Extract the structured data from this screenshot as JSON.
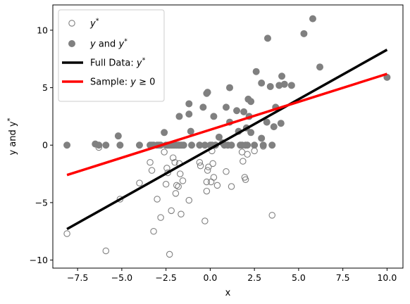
{
  "chart_data": {
    "type": "scatter",
    "xlabel": "x",
    "ylabel": "y and y*",
    "xlim": [
      -8.9,
      10.9
    ],
    "ylim": [
      -10.7,
      12.2
    ],
    "x_ticks": [
      -7.5,
      -5.0,
      -2.5,
      0.0,
      2.5,
      5.0,
      7.5,
      10.0
    ],
    "x_tick_labels": [
      "−7.5",
      "−5.0",
      "−2.5",
      "0.0",
      "2.5",
      "5.0",
      "7.5",
      "10.0"
    ],
    "y_ticks": [
      -10,
      -5,
      0,
      5,
      10
    ],
    "y_tick_labels": [
      "−10",
      "−5",
      "0",
      "5",
      "10"
    ],
    "grid": false,
    "legend_position": "top-left",
    "colors": {
      "scatter": "#808080",
      "full_line": "#000000",
      "sample_line": "#ff0000"
    },
    "legend": [
      {
        "kind": "open-marker",
        "label_main": "y",
        "label_sup": "*",
        "label_rest": ""
      },
      {
        "kind": "filled-marker",
        "label_main": "y",
        "label_rest": " and ",
        "label_main2": "y",
        "label_sup": "*"
      },
      {
        "kind": "black-line",
        "label_pre": "Full Data: ",
        "label_main": "y",
        "label_sup": "*"
      },
      {
        "kind": "red-line",
        "label_pre": "Sample: ",
        "label_main": "y",
        "label_rest": " ≥ 0"
      }
    ],
    "series": [
      {
        "name": "y*",
        "marker": "open-circle",
        "points": [
          [
            -8.1,
            -7.7
          ],
          [
            -6.3,
            -0.2
          ],
          [
            -5.9,
            -9.2
          ],
          [
            -5.1,
            -4.7
          ],
          [
            -4.0,
            -3.3
          ],
          [
            -3.4,
            -1.5
          ],
          [
            -3.3,
            -2.2
          ],
          [
            -3.2,
            -7.5
          ],
          [
            -3.0,
            -4.7
          ],
          [
            -2.8,
            -6.3
          ],
          [
            -2.6,
            -0.6
          ],
          [
            -2.5,
            -3.4
          ],
          [
            -2.45,
            -2.0
          ],
          [
            -2.4,
            -2.4
          ],
          [
            -2.3,
            -9.5
          ],
          [
            -2.2,
            -5.7
          ],
          [
            -2.1,
            -1.1
          ],
          [
            -2.0,
            -1.5
          ],
          [
            -1.95,
            -4.2
          ],
          [
            -1.9,
            -3.5
          ],
          [
            -1.8,
            -3.6
          ],
          [
            -1.75,
            -1.6
          ],
          [
            -1.7,
            -2.5
          ],
          [
            -1.65,
            -6.0
          ],
          [
            -1.55,
            -3.1
          ],
          [
            -1.2,
            -4.8
          ],
          [
            -0.6,
            -1.5
          ],
          [
            -0.55,
            -1.8
          ],
          [
            -0.3,
            -6.6
          ],
          [
            -0.2,
            -3.2
          ],
          [
            -0.2,
            -4.0
          ],
          [
            -0.15,
            -2.2
          ],
          [
            -0.1,
            -1.9
          ],
          [
            0.05,
            -3.2
          ],
          [
            0.1,
            -0.5
          ],
          [
            0.15,
            -1.6
          ],
          [
            0.2,
            -2.8
          ],
          [
            0.4,
            -3.5
          ],
          [
            0.9,
            -2.3
          ],
          [
            1.2,
            -3.6
          ],
          [
            1.8,
            -0.6
          ],
          [
            1.85,
            -1.4
          ],
          [
            1.95,
            -2.8
          ],
          [
            2.0,
            -3.0
          ],
          [
            2.1,
            -0.8
          ],
          [
            2.5,
            -0.5
          ],
          [
            3.0,
            -0.1
          ],
          [
            3.5,
            -6.1
          ]
        ]
      },
      {
        "name": "y and y*",
        "marker": "filled-circle",
        "points": [
          [
            -8.1,
            0
          ],
          [
            -6.5,
            0.1
          ],
          [
            -6.3,
            0
          ],
          [
            -5.9,
            0
          ],
          [
            -5.2,
            0.8
          ],
          [
            -5.1,
            0
          ],
          [
            -4.0,
            0
          ],
          [
            -3.4,
            0
          ],
          [
            -3.3,
            0
          ],
          [
            -3.2,
            0
          ],
          [
            -3.0,
            0
          ],
          [
            -2.9,
            0
          ],
          [
            -2.8,
            0
          ],
          [
            -2.6,
            1.1
          ],
          [
            -2.5,
            0
          ],
          [
            -2.4,
            0
          ],
          [
            -2.3,
            0
          ],
          [
            -2.2,
            0
          ],
          [
            -2.1,
            0
          ],
          [
            -2.0,
            0
          ],
          [
            -1.9,
            0
          ],
          [
            -1.8,
            0
          ],
          [
            -1.75,
            2.5
          ],
          [
            -1.7,
            0
          ],
          [
            -1.6,
            0
          ],
          [
            -1.5,
            0
          ],
          [
            -1.2,
            3.6
          ],
          [
            -1.2,
            2.7
          ],
          [
            -1.1,
            1.2
          ],
          [
            -1.05,
            0
          ],
          [
            -0.6,
            0
          ],
          [
            -0.4,
            3.3
          ],
          [
            -0.3,
            0
          ],
          [
            -0.2,
            4.5
          ],
          [
            -0.15,
            4.6
          ],
          [
            0.0,
            0
          ],
          [
            0.1,
            0
          ],
          [
            0.2,
            2.5
          ],
          [
            0.3,
            0
          ],
          [
            0.5,
            0.7
          ],
          [
            0.7,
            0.2
          ],
          [
            0.8,
            0
          ],
          [
            0.9,
            3.3
          ],
          [
            1.0,
            0
          ],
          [
            1.1,
            2.0
          ],
          [
            1.1,
            5.0
          ],
          [
            1.2,
            0
          ],
          [
            1.5,
            3.0
          ],
          [
            1.6,
            1.2
          ],
          [
            1.7,
            0
          ],
          [
            1.8,
            0
          ],
          [
            1.9,
            2.9
          ],
          [
            2.0,
            0
          ],
          [
            2.05,
            1.5
          ],
          [
            2.1,
            0
          ],
          [
            2.15,
            4.0
          ],
          [
            2.2,
            2.5
          ],
          [
            2.3,
            3.8
          ],
          [
            2.3,
            1.1
          ],
          [
            2.5,
            0
          ],
          [
            2.6,
            6.4
          ],
          [
            2.9,
            5.4
          ],
          [
            2.9,
            0.6
          ],
          [
            3.0,
            0
          ],
          [
            3.2,
            2.0
          ],
          [
            3.25,
            9.3
          ],
          [
            3.4,
            5.1
          ],
          [
            3.5,
            0
          ],
          [
            3.6,
            1.6
          ],
          [
            3.7,
            3.3
          ],
          [
            3.9,
            5.2
          ],
          [
            4.0,
            1.9
          ],
          [
            4.05,
            6.0
          ],
          [
            4.2,
            5.3
          ],
          [
            4.6,
            5.2
          ],
          [
            5.3,
            9.7
          ],
          [
            5.8,
            11.0
          ],
          [
            6.2,
            6.8
          ],
          [
            10.0,
            5.9
          ]
        ]
      },
      {
        "name": "Full Data: y*",
        "kind": "line",
        "points": [
          [
            -8.1,
            -7.3
          ],
          [
            10.0,
            8.3
          ]
        ]
      },
      {
        "name": "Sample: y ≥ 0",
        "kind": "line",
        "points": [
          [
            -8.1,
            -2.6
          ],
          [
            10.0,
            6.2
          ]
        ]
      }
    ]
  }
}
